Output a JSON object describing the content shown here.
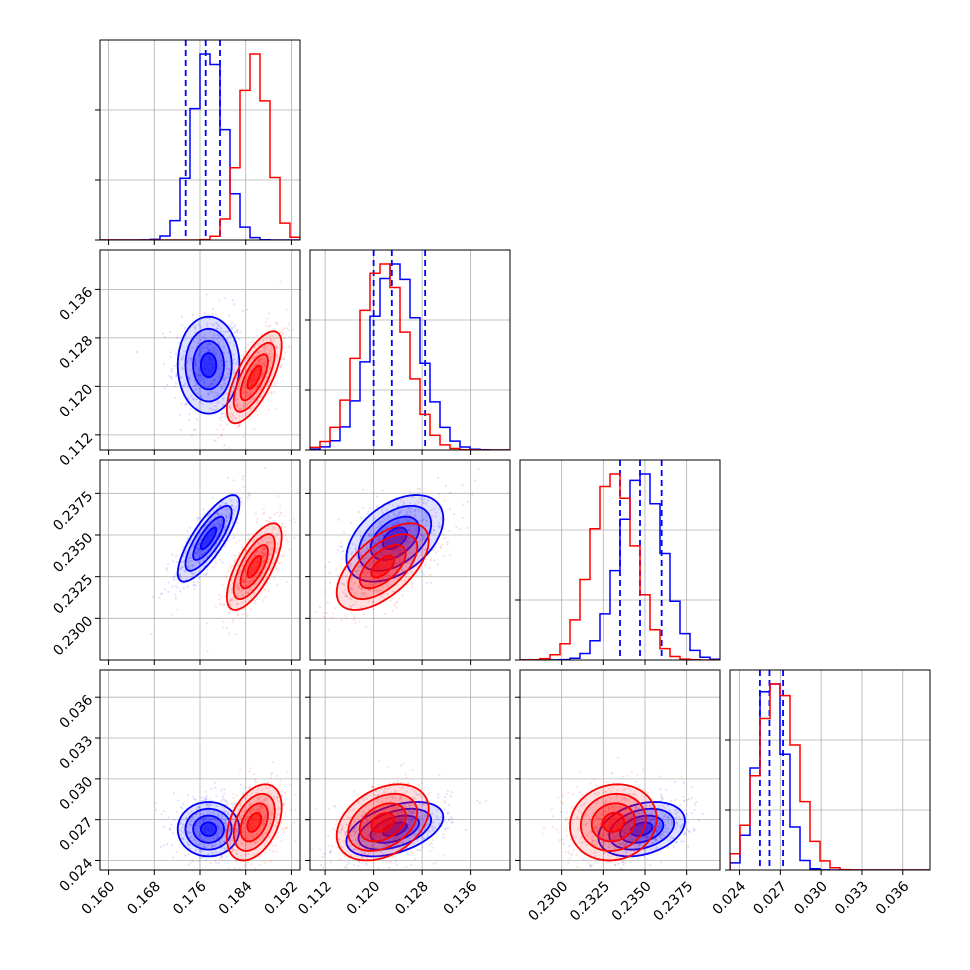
{
  "chart_data": {
    "type": "corner",
    "grid": true,
    "colors": {
      "blue": "#0000ff",
      "red": "#ff0000"
    },
    "series": [
      {
        "color": "#0000ff",
        "means": [
          0.1775,
          0.1235,
          0.2348,
          0.0263
        ],
        "sigmas": [
          0.0027,
          0.004,
          0.0013,
          0.001
        ],
        "corr": [
          [
            1.0,
            0.0,
            0.8,
            0.0
          ],
          [
            0.0,
            1.0,
            0.45,
            0.45
          ],
          [
            0.8,
            0.45,
            1.0,
            0.3
          ],
          [
            0.0,
            0.45,
            0.3,
            1.0
          ]
        ],
        "quantiles": [
          [
            0.1735,
            0.177,
            0.1795
          ],
          [
            0.12,
            0.123,
            0.1285
          ],
          [
            0.2335,
            0.2347,
            0.236
          ],
          [
            0.0255,
            0.0262,
            0.0272
          ]
        ]
      },
      {
        "color": "#ff0000",
        "means": [
          0.1855,
          0.1215,
          0.2331,
          0.0268
        ],
        "sigmas": [
          0.0024,
          0.0038,
          0.0013,
          0.0014
        ],
        "corr": [
          [
            1.0,
            0.7,
            0.7,
            0.4
          ],
          [
            0.7,
            1.0,
            0.6,
            0.35
          ],
          [
            0.7,
            0.6,
            1.0,
            0.1
          ],
          [
            0.4,
            0.35,
            0.1,
            1.0
          ]
        ]
      }
    ],
    "ranges": [
      [
        0.1585,
        0.1935
      ],
      [
        0.1095,
        0.1425
      ],
      [
        0.2275,
        0.2395
      ],
      [
        0.0233,
        0.038
      ]
    ],
    "ticks": [
      {
        "values": [
          0.16,
          0.168,
          0.176,
          0.184,
          0.192
        ],
        "labels": [
          "0.160",
          "0.168",
          "0.176",
          "0.184",
          "0.192"
        ]
      },
      {
        "values": [
          0.112,
          0.12,
          0.128,
          0.136
        ],
        "labels": [
          "0.112",
          "0.120",
          "0.128",
          "0.136"
        ]
      },
      {
        "values": [
          0.23,
          0.2325,
          0.235,
          0.2375
        ],
        "labels": [
          "0.2300",
          "0.2325",
          "0.2350",
          "0.2375"
        ]
      },
      {
        "values": [
          0.024,
          0.027,
          0.03,
          0.033,
          0.036
        ],
        "labels": [
          "0.024",
          "0.027",
          "0.030",
          "0.033",
          "0.036"
        ]
      }
    ]
  }
}
